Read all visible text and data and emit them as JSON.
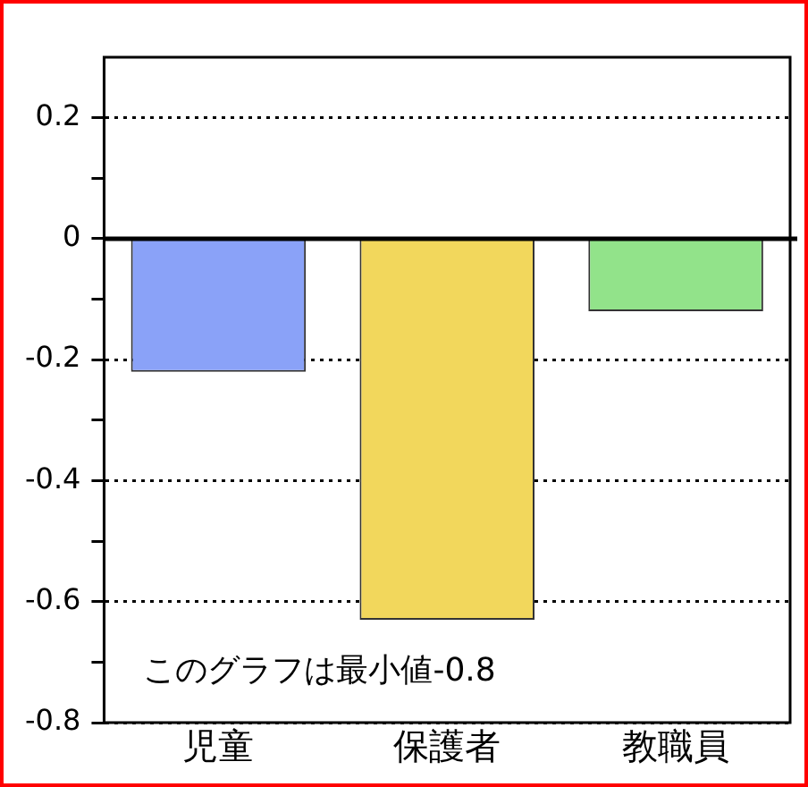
{
  "chart_data": {
    "type": "bar",
    "categories": [
      "児童",
      "保護者",
      "教職員"
    ],
    "values": [
      -0.22,
      -0.63,
      -0.12
    ],
    "colors": [
      "#8aa2f8",
      "#f2d75c",
      "#92e38a"
    ],
    "ylim": [
      -0.8,
      0.3
    ],
    "yticks": [
      -0.8,
      {
        "value": -0.7,
        "label": null
      },
      -0.6,
      {
        "value": -0.5,
        "label": null
      },
      -0.4,
      {
        "value": -0.3,
        "label": null
      },
      -0.2,
      {
        "value": -0.1,
        "label": null
      },
      0,
      {
        "value": 0.1,
        "label": null
      },
      0.2
    ],
    "grid": "y",
    "legend": false,
    "annotations": [
      {
        "text": "このグラフは最小値-0.8"
      }
    ]
  }
}
